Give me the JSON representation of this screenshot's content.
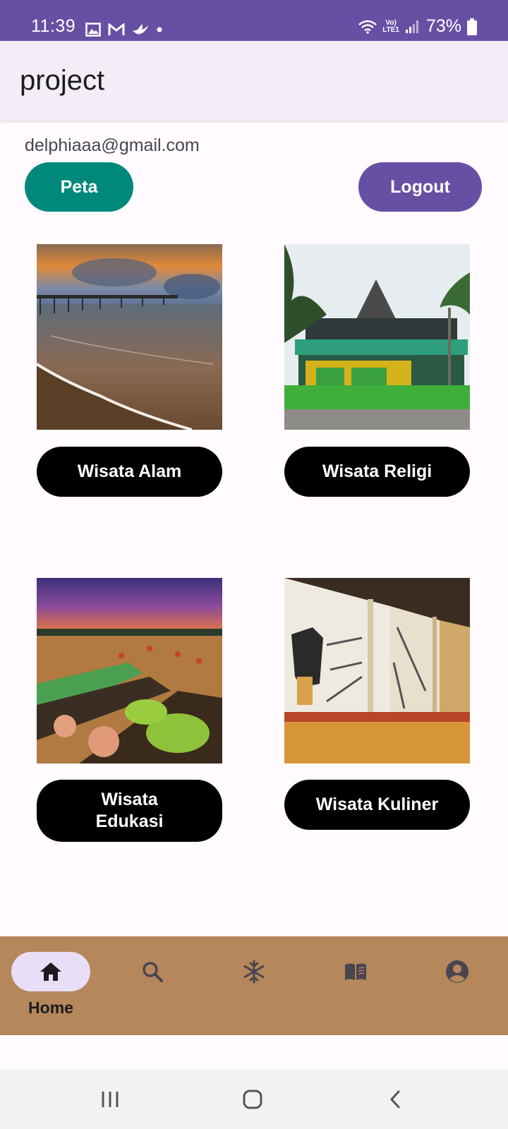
{
  "status_bar": {
    "time": "11:39",
    "battery": "73%"
  },
  "app_bar": {
    "title": "project"
  },
  "user": {
    "email": "delphiaaa@gmail.com"
  },
  "actions": {
    "map_label": "Peta",
    "logout_label": "Logout"
  },
  "categories": [
    {
      "label": "Wisata Alam",
      "image": "beach-pier-sunset-photo"
    },
    {
      "label": "Wisata Religi",
      "image": "mosque-photo"
    },
    {
      "label": "Wisata Edukasi",
      "image": "floating-market-photo"
    },
    {
      "label": "Wisata Kuliner",
      "image": "museum-display-photo"
    }
  ],
  "bottom_nav": {
    "items": [
      {
        "label": "Home",
        "icon": "home-icon",
        "selected": true
      },
      {
        "label": "",
        "icon": "search-icon",
        "selected": false
      },
      {
        "label": "",
        "icon": "snowflake-icon",
        "selected": false
      },
      {
        "label": "",
        "icon": "book-icon",
        "selected": false
      },
      {
        "label": "",
        "icon": "account-circle-icon",
        "selected": false
      }
    ]
  },
  "system_nav": {
    "icons": [
      "recents-icon",
      "home-circle-icon",
      "back-icon"
    ]
  },
  "colors": {
    "status_bar": "#6750a4",
    "app_bar": "#f3edf7",
    "map_button": "#00897b",
    "logout_button": "#6750a4",
    "category_button": "#000000",
    "bottom_nav": "#b5875b",
    "nav_indicator": "#e8def8"
  }
}
